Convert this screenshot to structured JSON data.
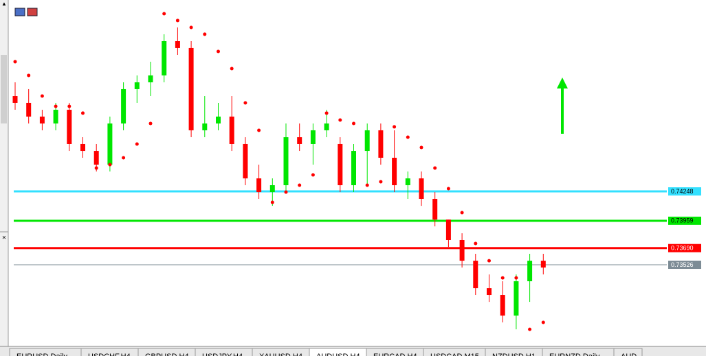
{
  "chart_data": {
    "type": "candlestick",
    "open": [
      0.75186,
      0.75119,
      0.74984,
      0.74916,
      0.75051,
      0.74714,
      0.74646,
      0.74511,
      0.74916,
      0.75254,
      0.75321,
      0.75389,
      0.75726,
      0.75659,
      0.74849,
      0.74916,
      0.74984,
      0.74714,
      0.74376,
      0.74241,
      0.74309,
      0.74781,
      0.74714,
      0.74849,
      0.74714,
      0.74309,
      0.74646,
      0.74849,
      0.74579,
      0.74309,
      0.74376,
      0.74174,
      0.73971,
      0.73769,
      0.73566,
      0.73296,
      0.73229,
      0.73026,
      0.73364,
      0.73566
    ],
    "high": [
      0.75321,
      0.75254,
      0.75051,
      0.75119,
      0.75119,
      0.74781,
      0.74714,
      0.74984,
      0.75321,
      0.75389,
      0.75524,
      0.75794,
      0.75861,
      0.75726,
      0.75186,
      0.75119,
      0.75186,
      0.74781,
      0.74511,
      0.74376,
      0.74916,
      0.74916,
      0.74916,
      0.75051,
      0.74781,
      0.74714,
      0.74916,
      0.74916,
      0.74849,
      0.74444,
      0.74444,
      0.74241,
      0.73971,
      0.73836,
      0.73634,
      0.73431,
      0.73364,
      0.73431,
      0.73634,
      0.73634
    ],
    "low": [
      0.75051,
      0.74916,
      0.74849,
      0.74849,
      0.74646,
      0.74579,
      0.74444,
      0.74444,
      0.74849,
      0.75119,
      0.75186,
      0.75321,
      0.75591,
      0.74781,
      0.74781,
      0.74849,
      0.74646,
      0.74309,
      0.74174,
      0.74106,
      0.74241,
      0.74646,
      0.74511,
      0.74781,
      0.74241,
      0.74241,
      0.74309,
      0.74511,
      0.74241,
      0.74174,
      0.74106,
      0.73904,
      0.73701,
      0.73499,
      0.73229,
      0.73161,
      0.72959,
      0.72891,
      0.73161,
      0.73431
    ],
    "close": [
      0.75119,
      0.74984,
      0.74916,
      0.75051,
      0.74714,
      0.74646,
      0.74511,
      0.74916,
      0.75254,
      0.75321,
      0.75389,
      0.75726,
      0.75659,
      0.74849,
      0.74916,
      0.74984,
      0.74714,
      0.74376,
      0.74241,
      0.74309,
      0.74781,
      0.74714,
      0.74849,
      0.74916,
      0.74309,
      0.74646,
      0.74849,
      0.74579,
      0.74309,
      0.74376,
      0.74174,
      0.73971,
      0.73769,
      0.73566,
      0.73296,
      0.73229,
      0.73026,
      0.73364,
      0.73566,
      0.73499
    ],
    "sar": [
      0.75524,
      0.75389,
      0.75186,
      0.75085,
      0.75085,
      0.75018,
      0.74478,
      0.74511,
      0.74579,
      0.74714,
      0.74916,
      0.75996,
      0.75929,
      0.75861,
      0.75794,
      0.75625,
      0.75456,
      0.75119,
      0.74849,
      0.7414,
      0.74241,
      0.74309,
      0.7441,
      0.75018,
      0.7495,
      0.74916,
      0.74309,
      0.74343,
      0.74883,
      0.74781,
      0.7468,
      0.74478,
      0.74275,
      0.74039,
      0.73735,
      0.73566,
      0.73397,
      0.73397,
      0.72891,
      0.72959
    ],
    "up_color": "#00e600",
    "down_color": "#ff0000",
    "sar_color": "#ff0000",
    "levels": [
      {
        "value": 0.74248,
        "color": "#33e0ff"
      },
      {
        "value": 0.73959,
        "color": "#00e600"
      },
      {
        "value": {
          "value": 0.7369,
          "label": "0.73690"
        },
        "color": "#ff0000"
      },
      {
        "value": 0.73526,
        "color": "#7d8c96"
      }
    ],
    "ylim": [
      0.72723,
      0.76131
    ]
  },
  "tabs": [
    "EURUSD,Daily",
    "USDCHF,H4",
    "GBPUSD,H4",
    "USDJPY,H4",
    "XAUUSD,H4",
    "AUDUSD,H4",
    "EURCAD,H4",
    "USDCAD,M15",
    "NZDUSD,H1",
    "EURNZD,Daily",
    "AUD"
  ]
}
